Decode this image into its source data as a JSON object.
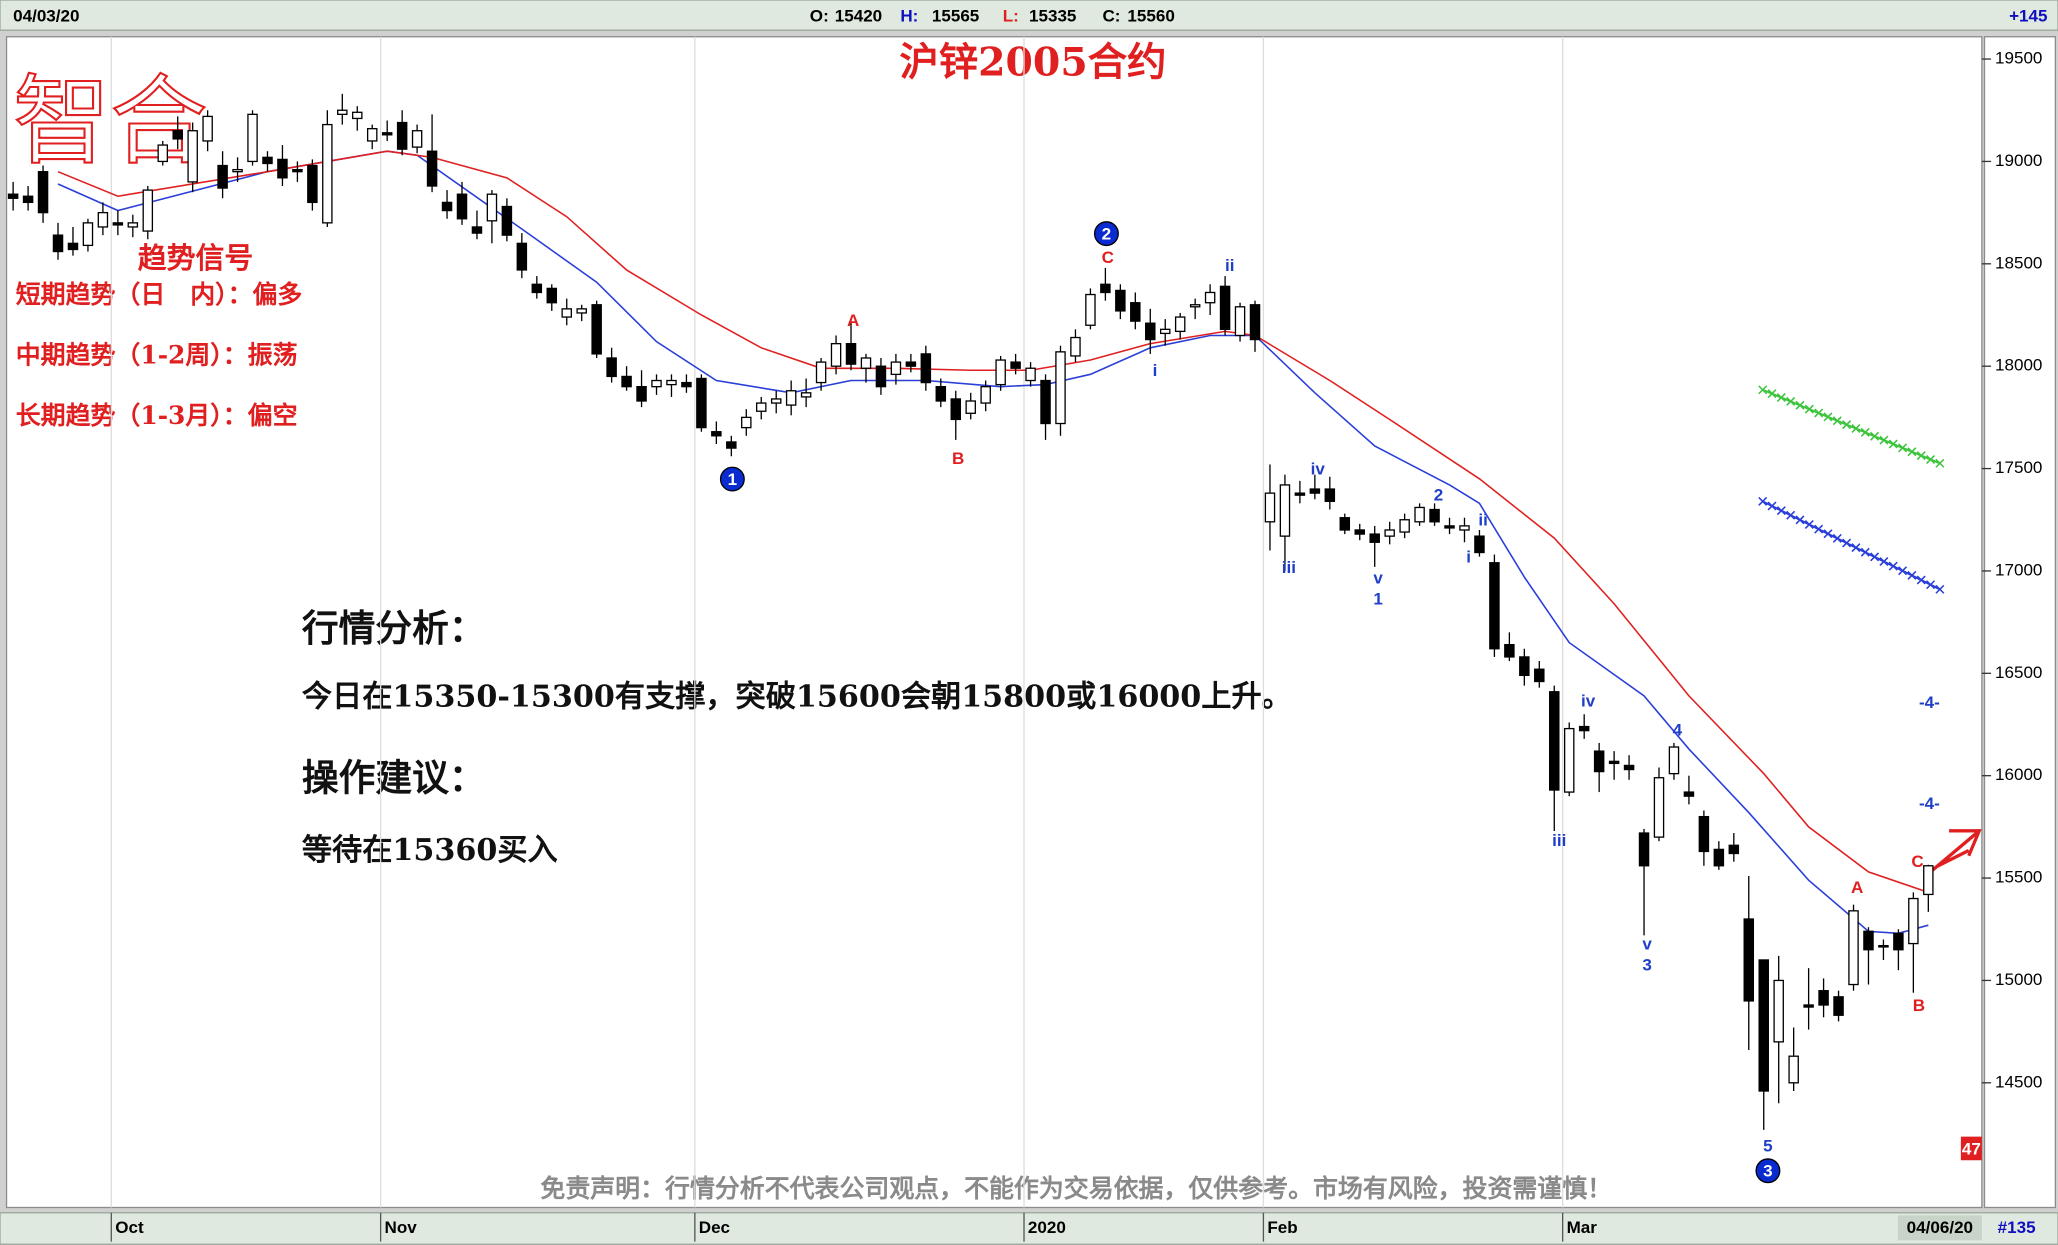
{
  "header": {
    "date": "04/03/20",
    "o_label": "O:",
    "h_label": "H:",
    "l_label": "L:",
    "c_label": "C:",
    "change": "+145"
  },
  "chart_data": {
    "type": "candlestick",
    "title": "沪锌2005合约",
    "candles": [
      [
        18840,
        18900,
        18760,
        18820
      ],
      [
        18830,
        18880,
        18760,
        18800
      ],
      [
        18950,
        18980,
        18700,
        18750
      ],
      [
        18640,
        18700,
        18520,
        18560
      ],
      [
        18600,
        18680,
        18540,
        18570
      ],
      [
        18590,
        18720,
        18560,
        18700
      ],
      [
        18680,
        18800,
        18640,
        18750
      ],
      [
        18700,
        18760,
        18640,
        18690
      ],
      [
        18680,
        18740,
        18630,
        18700
      ],
      [
        18660,
        18880,
        18620,
        18860
      ],
      [
        19000,
        19100,
        18980,
        19080
      ],
      [
        19150,
        19220,
        19060,
        19110
      ],
      [
        18900,
        19190,
        18850,
        19150
      ],
      [
        19100,
        19250,
        19050,
        19220
      ],
      [
        18980,
        19050,
        18820,
        18870
      ],
      [
        18950,
        19020,
        18900,
        18960
      ],
      [
        19000,
        19250,
        18980,
        19230
      ],
      [
        19020,
        19050,
        18950,
        18990
      ],
      [
        19010,
        19080,
        18880,
        18920
      ],
      [
        18960,
        19000,
        18900,
        18950
      ],
      [
        18980,
        19010,
        18760,
        18800
      ],
      [
        18700,
        19250,
        18680,
        19180
      ],
      [
        19230,
        19330,
        19180,
        19250
      ],
      [
        19210,
        19270,
        19150,
        19240
      ],
      [
        19100,
        19180,
        19060,
        19160
      ],
      [
        19140,
        19200,
        19100,
        19130
      ],
      [
        19190,
        19250,
        19030,
        19060
      ],
      [
        19070,
        19180,
        19040,
        19150
      ],
      [
        19050,
        19230,
        18850,
        18880
      ],
      [
        18800,
        18860,
        18720,
        18760
      ],
      [
        18840,
        18900,
        18690,
        18720
      ],
      [
        18680,
        18760,
        18620,
        18650
      ],
      [
        18710,
        18860,
        18600,
        18840
      ],
      [
        18780,
        18820,
        18610,
        18640
      ],
      [
        18600,
        18650,
        18430,
        18470
      ],
      [
        18400,
        18440,
        18330,
        18360
      ],
      [
        18380,
        18400,
        18270,
        18310
      ],
      [
        18240,
        18330,
        18200,
        18280
      ],
      [
        18260,
        18300,
        18220,
        18280
      ],
      [
        18300,
        18320,
        18040,
        18060
      ],
      [
        18040,
        18090,
        17920,
        17950
      ],
      [
        17950,
        18000,
        17880,
        17900
      ],
      [
        17900,
        17980,
        17800,
        17830
      ],
      [
        17900,
        17960,
        17860,
        17930
      ],
      [
        17910,
        17960,
        17850,
        17930
      ],
      [
        17920,
        17960,
        17870,
        17900
      ],
      [
        17940,
        17960,
        17680,
        17700
      ],
      [
        17680,
        17730,
        17620,
        17660
      ],
      [
        17630,
        17660,
        17560,
        17600
      ],
      [
        17700,
        17790,
        17660,
        17750
      ],
      [
        17780,
        17850,
        17740,
        17820
      ],
      [
        17820,
        17880,
        17770,
        17840
      ],
      [
        17810,
        17930,
        17760,
        17880
      ],
      [
        17850,
        17940,
        17800,
        17870
      ],
      [
        17920,
        18040,
        17880,
        18020
      ],
      [
        18000,
        18150,
        17960,
        18110
      ],
      [
        18110,
        18220,
        17980,
        18010
      ],
      [
        17990,
        18060,
        17920,
        18040
      ],
      [
        18000,
        18040,
        17860,
        17900
      ],
      [
        17960,
        18060,
        17910,
        18020
      ],
      [
        18020,
        18060,
        17970,
        18000
      ],
      [
        18060,
        18100,
        17880,
        17920
      ],
      [
        17900,
        17940,
        17800,
        17830
      ],
      [
        17840,
        17880,
        17640,
        17740
      ],
      [
        17770,
        17870,
        17740,
        17830
      ],
      [
        17820,
        17930,
        17780,
        17900
      ],
      [
        17910,
        18050,
        17880,
        18030
      ],
      [
        18020,
        18060,
        17960,
        17990
      ],
      [
        17930,
        18020,
        17900,
        17990
      ],
      [
        17930,
        17960,
        17640,
        17720
      ],
      [
        17720,
        18100,
        17660,
        18070
      ],
      [
        18050,
        18180,
        18020,
        18140
      ],
      [
        18200,
        18380,
        18180,
        18350
      ],
      [
        18400,
        18480,
        18320,
        18360
      ],
      [
        18370,
        18400,
        18230,
        18270
      ],
      [
        18310,
        18360,
        18180,
        18220
      ],
      [
        18210,
        18280,
        18060,
        18130
      ],
      [
        18160,
        18230,
        18100,
        18180
      ],
      [
        18170,
        18260,
        18130,
        18240
      ],
      [
        18290,
        18330,
        18230,
        18300
      ],
      [
        18310,
        18400,
        18250,
        18360
      ],
      [
        18390,
        18440,
        18150,
        18180
      ],
      [
        18150,
        18310,
        18120,
        18290
      ],
      [
        18300,
        18320,
        18070,
        18130
      ],
      [
        17240,
        17520,
        17100,
        17380
      ],
      [
        17170,
        17470,
        17000,
        17420
      ],
      [
        17380,
        17440,
        17330,
        17370
      ],
      [
        17400,
        17470,
        17350,
        17380
      ],
      [
        17400,
        17460,
        17300,
        17340
      ],
      [
        17260,
        17280,
        17180,
        17200
      ],
      [
        17200,
        17230,
        17150,
        17180
      ],
      [
        17180,
        17220,
        17020,
        17140
      ],
      [
        17170,
        17240,
        17130,
        17200
      ],
      [
        17190,
        17280,
        17160,
        17250
      ],
      [
        17240,
        17330,
        17220,
        17310
      ],
      [
        17300,
        17330,
        17220,
        17240
      ],
      [
        17220,
        17260,
        17180,
        17210
      ],
      [
        17200,
        17260,
        17140,
        17220
      ],
      [
        17170,
        17200,
        17070,
        17090
      ],
      [
        17040,
        17080,
        16580,
        16620
      ],
      [
        16640,
        16700,
        16560,
        16580
      ],
      [
        16580,
        16620,
        16440,
        16490
      ],
      [
        16520,
        16560,
        16430,
        16460
      ],
      [
        16410,
        16440,
        15730,
        15930
      ],
      [
        15920,
        16260,
        15900,
        16230
      ],
      [
        16240,
        16300,
        16180,
        16220
      ],
      [
        16120,
        16160,
        15920,
        16020
      ],
      [
        16070,
        16120,
        15980,
        16060
      ],
      [
        16050,
        16100,
        15980,
        16030
      ],
      [
        15720,
        15740,
        15220,
        15560
      ],
      [
        15700,
        16040,
        15680,
        15990
      ],
      [
        16010,
        16160,
        15980,
        16140
      ],
      [
        15920,
        16000,
        15860,
        15900
      ],
      [
        15800,
        15830,
        15560,
        15630
      ],
      [
        15640,
        15680,
        15540,
        15560
      ],
      [
        15660,
        15720,
        15580,
        15620
      ],
      [
        15300,
        15510,
        14660,
        14900
      ],
      [
        15100,
        15100,
        14270,
        14460
      ],
      [
        14700,
        15120,
        14400,
        15000
      ],
      [
        14500,
        14770,
        14460,
        14630
      ],
      [
        14880,
        15060,
        14760,
        14870
      ],
      [
        14950,
        15010,
        14820,
        14880
      ],
      [
        14920,
        14950,
        14800,
        14830
      ],
      [
        14980,
        15370,
        14950,
        15340
      ],
      [
        15240,
        15260,
        14980,
        15150
      ],
      [
        15170,
        15200,
        15100,
        15170
      ],
      [
        15230,
        15250,
        15050,
        15150
      ],
      [
        15180,
        15430,
        14940,
        15400
      ],
      [
        15420,
        15565,
        15335,
        15560
      ]
    ],
    "series": [
      {
        "color": "#2a3fd8",
        "x": [
          3,
          7,
          17,
          25,
          27,
          34,
          39,
          43,
          47,
          52,
          56,
          61,
          66,
          69,
          72,
          76,
          80,
          83,
          87,
          91,
          96,
          98,
          101,
          104,
          109,
          112,
          116,
          120,
          124,
          126,
          128
        ],
        "values": [
          18890,
          18760,
          18950,
          19050,
          19030,
          18670,
          18410,
          18120,
          17930,
          17870,
          17930,
          17930,
          17900,
          17910,
          17960,
          18090,
          18150,
          18150,
          17870,
          17610,
          17420,
          17330,
          16970,
          16650,
          16390,
          16130,
          15820,
          15490,
          15240,
          15230,
          15270
        ]
      },
      {
        "color": "#e02020",
        "x": [
          3,
          7,
          17,
          25,
          28,
          33,
          37,
          41,
          46,
          50,
          54,
          59,
          64,
          68,
          72,
          76,
          81,
          83,
          88,
          92,
          98,
          103,
          107,
          112,
          117,
          120,
          124,
          128
        ],
        "values": [
          18950,
          18830,
          18950,
          19050,
          19020,
          18920,
          18730,
          18470,
          18250,
          18090,
          17990,
          17990,
          17980,
          17980,
          18030,
          18110,
          18170,
          18150,
          17930,
          17740,
          17450,
          17160,
          16840,
          16390,
          16010,
          15750,
          15530,
          15430
        ]
      }
    ],
    "ylim": [
      13900,
      19600
    ],
    "yticks": [
      14500,
      15000,
      15500,
      16000,
      16500,
      17000,
      17500,
      18000,
      18500,
      19000,
      19500
    ],
    "xticks": [
      {
        "value": 7,
        "label": "Oct"
      },
      {
        "value": 25,
        "label": "Nov"
      },
      {
        "value": 46,
        "label": "Dec"
      },
      {
        "value": 68,
        "label": "2020"
      },
      {
        "value": 84,
        "label": "Feb"
      },
      {
        "value": 104,
        "label": "Mar"
      }
    ],
    "up_color": "#ffffff",
    "down_color": "#000000",
    "annotations": [
      {
        "text": "1",
        "color": "#0a2bd0",
        "circled": true
      },
      {
        "text": "2",
        "color": "#0a2bd0",
        "circled": true
      },
      {
        "text": "3",
        "color": "#0a2bd0",
        "circled": true
      },
      {
        "text": "A",
        "color": "#e02020"
      },
      {
        "text": "B",
        "color": "#e02020"
      },
      {
        "text": "C",
        "color": "#e02020"
      },
      {
        "text": "ii",
        "color": "#1f3fc8"
      },
      {
        "text": "i",
        "color": "#1f3fc8"
      },
      {
        "text": "iii",
        "color": "#1f3fc8"
      },
      {
        "text": "iv",
        "color": "#1f3fc8"
      },
      {
        "text": "v",
        "color": "#1f3fc8"
      },
      {
        "text": "1",
        "color": "#1f3fc8"
      },
      {
        "text": "2",
        "color": "#1f3fc8"
      },
      {
        "text": "ii",
        "color": "#1f3fc8"
      },
      {
        "text": "i",
        "color": "#1f3fc8"
      },
      {
        "text": "iii",
        "color": "#1f3fc8"
      },
      {
        "text": "iv",
        "color": "#1f3fc8"
      },
      {
        "text": "v",
        "color": "#1f3fc8"
      },
      {
        "text": "3",
        "color": "#1f3fc8"
      },
      {
        "text": "4",
        "color": "#1f3fc8"
      },
      {
        "text": "5",
        "color": "#1f3fc8"
      },
      {
        "text": "A",
        "color": "#e02020"
      },
      {
        "text": "B",
        "color": "#e02020"
      },
      {
        "text": "C",
        "color": "#e02020"
      },
      {
        "text": "-4-",
        "color": "#1f3fc8"
      },
      {
        "text": "-4-",
        "color": "#1f3fc8"
      }
    ],
    "badge": "47",
    "end_date": "04/06/20",
    "bar_count": "#135"
  },
  "overlay_text": {
    "logo": "智合",
    "signal_title": "趋势信号",
    "signals": [
      "短期趋势（日　内）：偏多",
      "中期趋势（1-2周）：振荡",
      "长期趋势（1-3月）：偏空"
    ],
    "analysis_title": "行情分析：",
    "analysis": "今日在15350-15300有支撑，突破15600会朝15800或16000上升。",
    "advice_title": "操作建议：",
    "advice": "等待在15360买入"
  },
  "footer": {
    "disclaimer": "免责声明：行情分析不代表公司观点，不能作为交易依据，仅供参考。市场有风险，投资需谨慎！"
  }
}
